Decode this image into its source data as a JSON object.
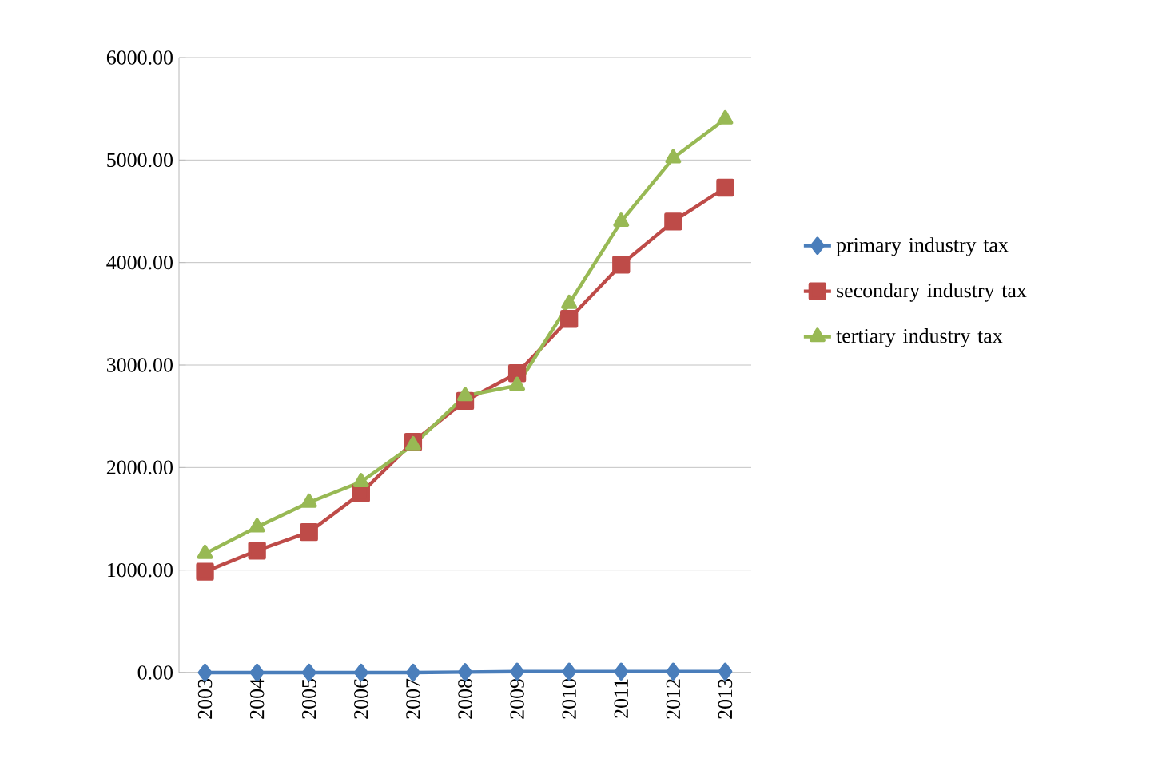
{
  "chart_data": {
    "type": "line",
    "categories": [
      "2003",
      "2004",
      "2005",
      "2006",
      "2007",
      "2008",
      "2009",
      "2010",
      "2011",
      "2012",
      "2013"
    ],
    "series": [
      {
        "name": "primary industry tax",
        "color": "#4a7ebb",
        "marker": "diamond",
        "values": [
          0,
          0,
          0,
          0,
          0,
          5,
          10,
          10,
          10,
          10,
          10
        ]
      },
      {
        "name": "secondary industry tax",
        "color": "#be4b48",
        "marker": "square",
        "values": [
          985,
          1190,
          1370,
          1750,
          2250,
          2650,
          2920,
          3450,
          3980,
          4400,
          4730
        ]
      },
      {
        "name": "tertiary industry tax",
        "color": "#98b954",
        "marker": "triangle",
        "values": [
          1160,
          1420,
          1660,
          1860,
          2220,
          2700,
          2800,
          3600,
          4400,
          5020,
          5400
        ]
      }
    ],
    "ylim": [
      0,
      6000
    ],
    "yticks": [
      {
        "value": 0,
        "label": "0.00"
      },
      {
        "value": 1000,
        "label": "1000.00"
      },
      {
        "value": 2000,
        "label": "2000.00"
      },
      {
        "value": 3000,
        "label": "3000.00"
      },
      {
        "value": 4000,
        "label": "4000.00"
      },
      {
        "value": 5000,
        "label": "5000.00"
      },
      {
        "value": 6000,
        "label": "6000.00"
      }
    ],
    "grid": "y",
    "legend": "right",
    "line_style": "solid"
  }
}
